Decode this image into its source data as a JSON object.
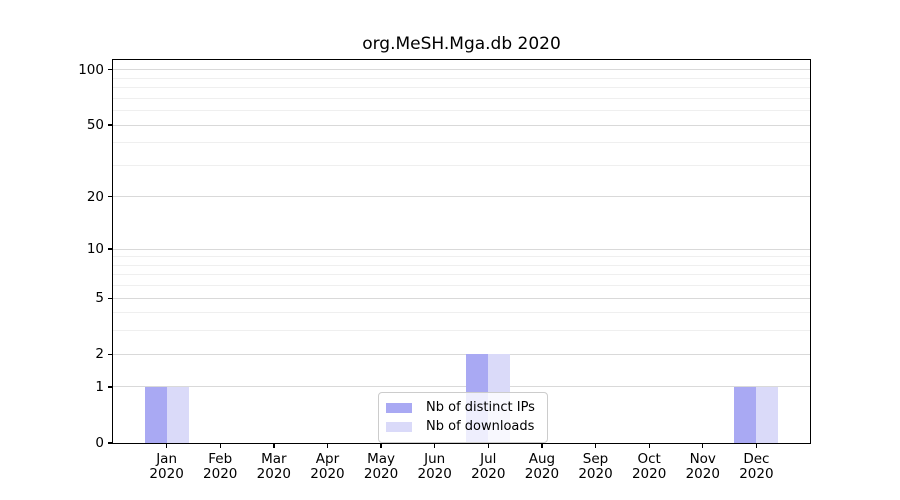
{
  "chart_data": {
    "type": "bar",
    "title": "org.MeSH.Mga.db 2020",
    "categories": [
      "Jan",
      "Feb",
      "Mar",
      "Apr",
      "May",
      "Jun",
      "Jul",
      "Aug",
      "Sep",
      "Oct",
      "Nov",
      "Dec"
    ],
    "category_year": "2020",
    "series": [
      {
        "name": "Nb of distinct IPs",
        "color": "#a9a9f3",
        "values": [
          1,
          0,
          0,
          0,
          0,
          0,
          2,
          0,
          0,
          0,
          0,
          1
        ]
      },
      {
        "name": "Nb of downloads",
        "color": "#dadaf9",
        "values": [
          1,
          0,
          0,
          0,
          0,
          0,
          2,
          0,
          0,
          0,
          0,
          1
        ]
      }
    ],
    "yscale": "log1p",
    "ylim": [
      0,
      113
    ],
    "yticks": [
      0,
      1,
      2,
      5,
      10,
      20,
      50,
      100
    ],
    "minor_yticks": [
      3,
      4,
      6,
      7,
      8,
      9,
      30,
      40,
      60,
      70,
      80,
      90
    ],
    "xlabel": "",
    "ylabel": "",
    "grid": "horizontal",
    "legend_position": "lower center",
    "colors": {
      "major_grid": "#d9d9d9",
      "minor_grid": "#efefef",
      "spine": "#000000",
      "text": "#000000",
      "legend_border": "#cccccc"
    }
  }
}
